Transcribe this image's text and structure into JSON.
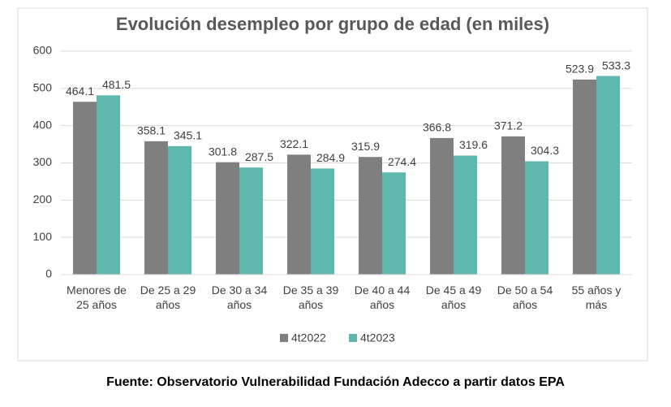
{
  "chart_data": {
    "type": "bar",
    "title": "Evolución desempleo por grupo de edad (en miles)",
    "categories": [
      "Menores de 25 años",
      "De 25 a 29 años",
      "De 30 a 34 años",
      "De 35 a 39 años",
      "De 40 a 44 años",
      "De 45 a 49 años",
      "De 50 a 54 años",
      "55 años y más"
    ],
    "series": [
      {
        "name": "4t2022",
        "color": "#7f7f7f",
        "values": [
          464.1,
          358.1,
          301.8,
          322.1,
          315.9,
          366.8,
          371.2,
          523.9
        ]
      },
      {
        "name": "4t2023",
        "color": "#5fb8b0",
        "values": [
          481.5,
          345.1,
          287.5,
          284.9,
          274.4,
          319.6,
          304.3,
          533.3
        ]
      }
    ],
    "ylim": [
      0,
      600
    ],
    "yticks": [
      0,
      100,
      200,
      300,
      400,
      500,
      600
    ],
    "grid": true,
    "legend": "bottom",
    "source": "Fuente: Observatorio Vulnerabilidad Fundación Adecco a partir datos EPA"
  }
}
